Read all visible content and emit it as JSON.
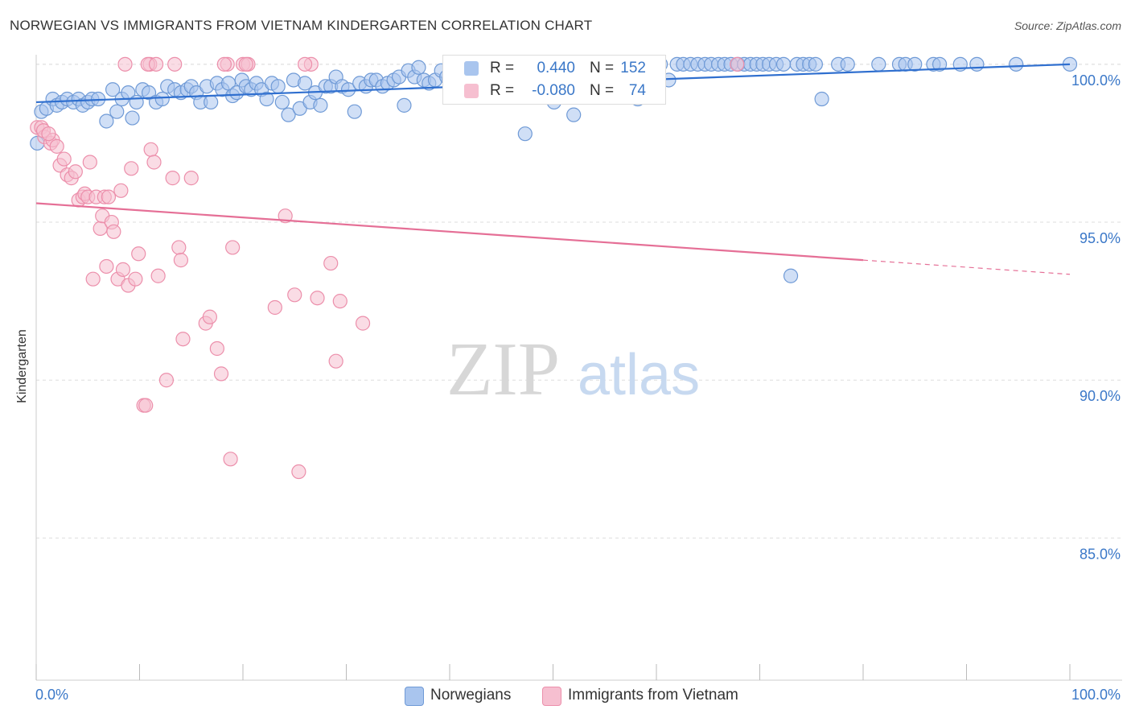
{
  "title": "NORWEGIAN VS IMMIGRANTS FROM VIETNAM KINDERGARTEN CORRELATION CHART",
  "source": "Source: ZipAtlas.com",
  "watermark": {
    "zip": "ZIP",
    "atlas": "atlas"
  },
  "colors": {
    "blue_fill": "#a9c5ee",
    "blue_stroke": "#6f9ad6",
    "blue_line": "#2f6fcf",
    "pink_fill": "#f6bfd0",
    "pink_stroke": "#ec8fab",
    "pink_line": "#e56f96",
    "axis_text": "#3b78c8",
    "grid": "#dddddd"
  },
  "legend_top": [
    {
      "r_label": "R =",
      "r_value": "0.440",
      "n_label": "N =",
      "n_value": "152",
      "color": "#a9c5ee"
    },
    {
      "r_label": "R =",
      "r_value": "-0.080",
      "n_label": "N =",
      "n_value": "74",
      "color": "#f6bfd0"
    }
  ],
  "legend_bottom": [
    {
      "label": "Norwegians",
      "color": "#a9c5ee"
    },
    {
      "label": "Immigrants from Vietnam",
      "color": "#f6bfd0"
    }
  ],
  "chart_data": {
    "type": "scatter",
    "title": "NORWEGIAN VS IMMIGRANTS FROM VIETNAM KINDERGARTEN CORRELATION CHART",
    "xlabel": "",
    "ylabel": "Kindergarten",
    "xlim": [
      0,
      100
    ],
    "ylim": [
      80.5,
      100.2
    ],
    "x_tick_labels": [
      "0.0%",
      "100.0%"
    ],
    "y_ticks": [
      85,
      90,
      95,
      100
    ],
    "y_tick_labels": [
      "85.0%",
      "90.0%",
      "95.0%",
      "100.0%"
    ],
    "grid": true,
    "series": [
      {
        "name": "Norwegians",
        "r": 0.44,
        "n": 152,
        "trend": {
          "x": [
            0,
            100
          ],
          "y": [
            98.8,
            100.0
          ]
        },
        "points": [
          [
            0.1,
            97.5
          ],
          [
            0.5,
            98.5
          ],
          [
            1.0,
            98.6
          ],
          [
            1.6,
            98.9
          ],
          [
            2.0,
            98.7
          ],
          [
            2.5,
            98.8
          ],
          [
            3.0,
            98.9
          ],
          [
            3.6,
            98.8
          ],
          [
            4.1,
            98.9
          ],
          [
            4.5,
            98.7
          ],
          [
            5.0,
            98.8
          ],
          [
            5.4,
            98.9
          ],
          [
            6.0,
            98.9
          ],
          [
            6.8,
            98.2
          ],
          [
            7.4,
            99.2
          ],
          [
            7.8,
            98.5
          ],
          [
            8.3,
            98.9
          ],
          [
            8.9,
            99.1
          ],
          [
            9.3,
            98.3
          ],
          [
            9.7,
            98.8
          ],
          [
            10.3,
            99.2
          ],
          [
            10.9,
            99.1
          ],
          [
            11.6,
            98.8
          ],
          [
            12.2,
            98.9
          ],
          [
            12.7,
            99.3
          ],
          [
            13.4,
            99.2
          ],
          [
            14.0,
            99.1
          ],
          [
            14.6,
            99.2
          ],
          [
            15.0,
            99.3
          ],
          [
            15.5,
            99.1
          ],
          [
            15.9,
            98.8
          ],
          [
            16.5,
            99.3
          ],
          [
            16.9,
            98.8
          ],
          [
            17.5,
            99.4
          ],
          [
            18.0,
            99.2
          ],
          [
            18.6,
            99.4
          ],
          [
            19.0,
            99.0
          ],
          [
            19.4,
            99.1
          ],
          [
            19.9,
            99.5
          ],
          [
            20.3,
            99.3
          ],
          [
            20.8,
            99.2
          ],
          [
            21.3,
            99.4
          ],
          [
            21.8,
            99.2
          ],
          [
            22.3,
            98.9
          ],
          [
            22.8,
            99.4
          ],
          [
            23.4,
            99.3
          ],
          [
            23.8,
            98.8
          ],
          [
            24.4,
            98.4
          ],
          [
            24.9,
            99.5
          ],
          [
            25.5,
            98.6
          ],
          [
            26.0,
            99.4
          ],
          [
            26.5,
            98.8
          ],
          [
            27.0,
            99.1
          ],
          [
            27.5,
            98.7
          ],
          [
            28.0,
            99.3
          ],
          [
            28.5,
            99.3
          ],
          [
            29.0,
            99.6
          ],
          [
            29.6,
            99.3
          ],
          [
            30.2,
            99.2
          ],
          [
            30.8,
            98.5
          ],
          [
            31.3,
            99.4
          ],
          [
            31.9,
            99.3
          ],
          [
            32.4,
            99.5
          ],
          [
            32.9,
            99.5
          ],
          [
            33.5,
            99.3
          ],
          [
            34.0,
            99.4
          ],
          [
            34.6,
            99.5
          ],
          [
            35.1,
            99.6
          ],
          [
            35.6,
            98.7
          ],
          [
            36.0,
            99.8
          ],
          [
            36.6,
            99.6
          ],
          [
            37.0,
            99.9
          ],
          [
            37.5,
            99.5
          ],
          [
            38.0,
            99.4
          ],
          [
            38.6,
            99.5
          ],
          [
            39.2,
            99.8
          ],
          [
            39.7,
            99.6
          ],
          [
            40.3,
            99.5
          ],
          [
            40.8,
            99.4
          ],
          [
            41.3,
            99.7
          ],
          [
            41.9,
            99.6
          ],
          [
            42.5,
            99.9
          ],
          [
            43.0,
            99.6
          ],
          [
            43.5,
            99.3
          ],
          [
            44.2,
            99.7
          ],
          [
            45.0,
            100.0
          ],
          [
            45.6,
            99.8
          ],
          [
            46.0,
            99.6
          ],
          [
            46.8,
            100.0
          ],
          [
            47.3,
            97.8
          ],
          [
            48.0,
            99.8
          ],
          [
            48.6,
            99.7
          ],
          [
            49.4,
            99.9
          ],
          [
            50.1,
            98.8
          ],
          [
            50.8,
            100.0
          ],
          [
            51.3,
            99.7
          ],
          [
            52.0,
            98.4
          ],
          [
            52.8,
            99.8
          ],
          [
            53.4,
            99.9
          ],
          [
            54.0,
            100.0
          ],
          [
            54.7,
            99.8
          ],
          [
            55.4,
            100.0
          ],
          [
            56.1,
            99.9
          ],
          [
            56.8,
            99.6
          ],
          [
            57.5,
            100.0
          ],
          [
            58.2,
            98.9
          ],
          [
            59.0,
            100.0
          ],
          [
            59.6,
            99.8
          ],
          [
            60.4,
            100.0
          ],
          [
            61.2,
            99.5
          ],
          [
            62.0,
            100.0
          ],
          [
            62.6,
            100.0
          ],
          [
            63.3,
            100.0
          ],
          [
            64.0,
            100.0
          ],
          [
            64.7,
            100.0
          ],
          [
            65.3,
            100.0
          ],
          [
            66.0,
            100.0
          ],
          [
            66.6,
            100.0
          ],
          [
            67.2,
            100.0
          ],
          [
            67.9,
            100.0
          ],
          [
            68.5,
            100.0
          ],
          [
            69.1,
            100.0
          ],
          [
            69.7,
            100.0
          ],
          [
            70.3,
            100.0
          ],
          [
            70.9,
            100.0
          ],
          [
            71.6,
            100.0
          ],
          [
            72.3,
            100.0
          ],
          [
            73.0,
            93.3
          ],
          [
            73.6,
            100.0
          ],
          [
            74.2,
            100.0
          ],
          [
            74.8,
            100.0
          ],
          [
            75.4,
            100.0
          ],
          [
            76.0,
            98.9
          ],
          [
            77.6,
            100.0
          ],
          [
            78.5,
            100.0
          ],
          [
            81.5,
            100.0
          ],
          [
            83.5,
            100.0
          ],
          [
            84.1,
            100.0
          ],
          [
            85.0,
            100.0
          ],
          [
            86.8,
            100.0
          ],
          [
            87.4,
            100.0
          ],
          [
            89.4,
            100.0
          ],
          [
            91.0,
            100.0
          ],
          [
            94.8,
            100.0
          ],
          [
            100.0,
            100.0
          ]
        ]
      },
      {
        "name": "Immigrants from Vietnam",
        "r": -0.08,
        "n": 74,
        "trend": {
          "x": [
            0,
            80
          ],
          "y": [
            95.6,
            93.8
          ],
          "dashed_to": {
            "x": 100,
            "y": 93.35
          }
        },
        "points": [
          [
            0.1,
            98.0
          ],
          [
            0.5,
            98.0
          ],
          [
            0.8,
            97.7
          ],
          [
            1.4,
            97.5
          ],
          [
            1.6,
            97.6
          ],
          [
            2.0,
            97.4
          ],
          [
            2.3,
            96.8
          ],
          [
            2.7,
            97.0
          ],
          [
            3.0,
            96.5
          ],
          [
            3.4,
            96.4
          ],
          [
            3.8,
            96.6
          ],
          [
            4.1,
            95.7
          ],
          [
            4.5,
            95.8
          ],
          [
            4.7,
            95.9
          ],
          [
            5.0,
            95.8
          ],
          [
            5.2,
            96.9
          ],
          [
            5.5,
            93.2
          ],
          [
            5.8,
            95.8
          ],
          [
            6.2,
            94.8
          ],
          [
            6.4,
            95.2
          ],
          [
            6.6,
            95.8
          ],
          [
            6.8,
            93.6
          ],
          [
            7.0,
            95.8
          ],
          [
            7.3,
            95.0
          ],
          [
            7.5,
            94.7
          ],
          [
            7.9,
            93.2
          ],
          [
            8.2,
            96.0
          ],
          [
            8.4,
            93.5
          ],
          [
            8.9,
            93.0
          ],
          [
            9.2,
            96.7
          ],
          [
            9.6,
            93.2
          ],
          [
            9.9,
            94.0
          ],
          [
            10.4,
            89.2
          ],
          [
            10.6,
            89.2
          ],
          [
            11.1,
            97.3
          ],
          [
            11.4,
            96.9
          ],
          [
            11.8,
            93.3
          ],
          [
            12.6,
            90.0
          ],
          [
            13.2,
            96.4
          ],
          [
            13.8,
            94.2
          ],
          [
            14.0,
            93.8
          ],
          [
            14.2,
            91.3
          ],
          [
            15.0,
            96.4
          ],
          [
            16.4,
            91.8
          ],
          [
            16.8,
            92.0
          ],
          [
            17.5,
            91.0
          ],
          [
            17.9,
            90.2
          ],
          [
            18.5,
            100.0
          ],
          [
            18.8,
            87.5
          ],
          [
            19.0,
            94.2
          ],
          [
            20.0,
            100.0
          ],
          [
            20.5,
            100.0
          ],
          [
            23.1,
            92.3
          ],
          [
            24.1,
            95.2
          ],
          [
            25.0,
            92.7
          ],
          [
            25.4,
            87.1
          ],
          [
            26.6,
            100.0
          ],
          [
            27.2,
            92.6
          ],
          [
            28.5,
            93.7
          ],
          [
            29.0,
            90.6
          ],
          [
            29.4,
            92.5
          ],
          [
            31.6,
            91.8
          ],
          [
            11.0,
            100.0
          ],
          [
            8.6,
            100.0
          ],
          [
            10.8,
            100.0
          ],
          [
            11.6,
            100.0
          ],
          [
            13.4,
            100.0
          ],
          [
            18.2,
            100.0
          ],
          [
            20.3,
            100.0
          ],
          [
            26.0,
            100.0
          ],
          [
            47.2,
            100.0
          ],
          [
            67.8,
            100.0
          ],
          [
            0.7,
            97.9
          ],
          [
            1.2,
            97.8
          ]
        ]
      }
    ]
  }
}
